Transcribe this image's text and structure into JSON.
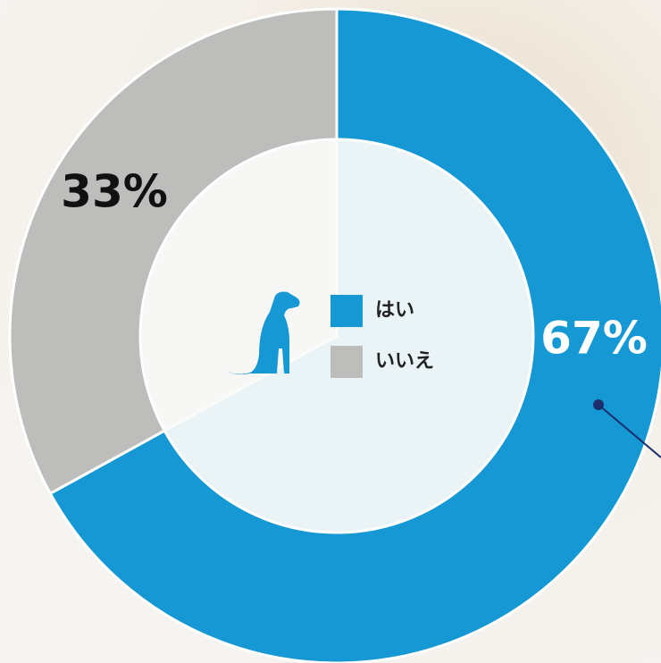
{
  "chart_data": {
    "type": "donut",
    "categories": [
      "はい",
      "いいえ"
    ],
    "values": [
      67,
      33
    ],
    "value_labels": [
      "67%",
      "33%"
    ],
    "colors": [
      "#1598d4",
      "#bdbdbb"
    ],
    "label_colors": [
      "#ffffff",
      "#111111"
    ]
  }
}
